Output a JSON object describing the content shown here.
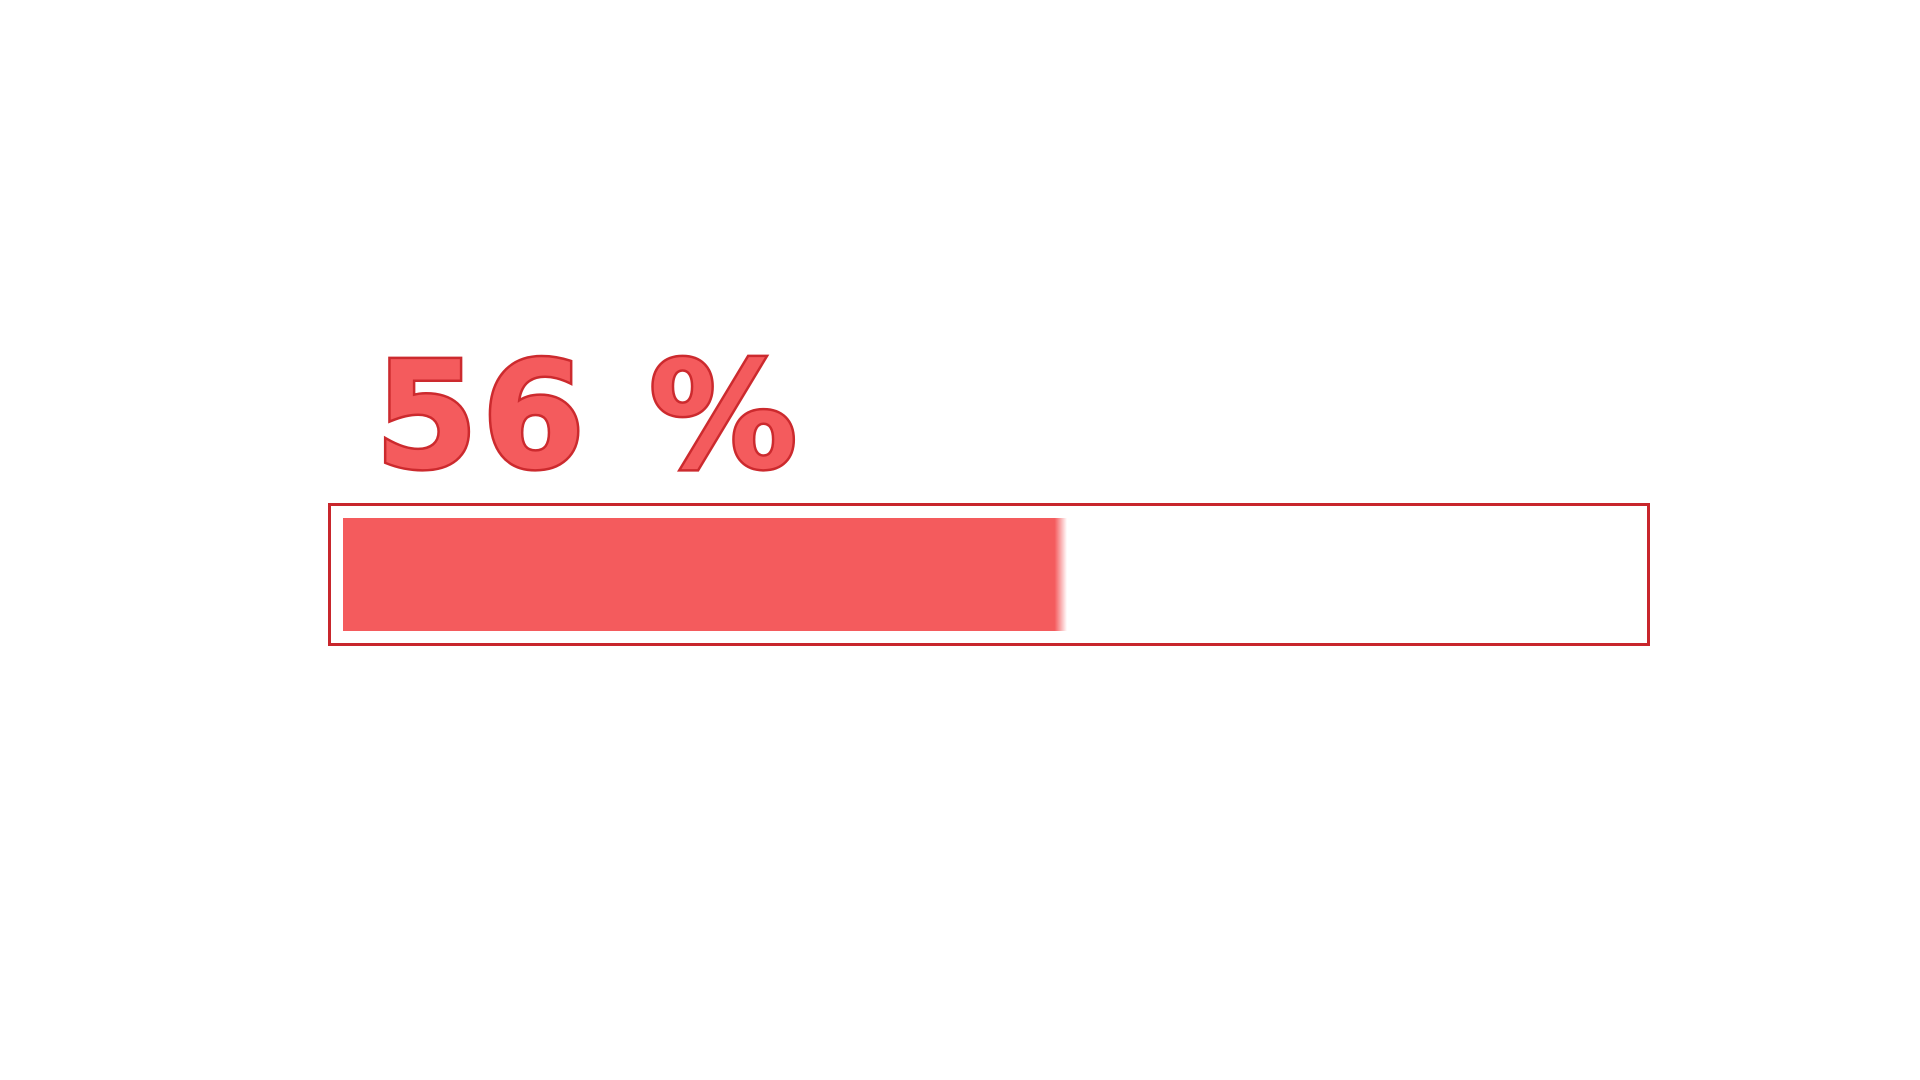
{
  "progress": {
    "value_text": "56",
    "unit_text": "%",
    "fraction": 0.56
  },
  "colors": {
    "fill": "#f45b5d",
    "outline": "#c8262c",
    "background": "#ffffff"
  }
}
